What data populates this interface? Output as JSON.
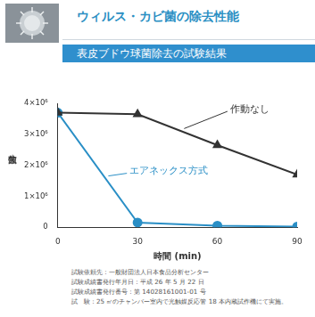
{
  "header": {
    "title": "ウィルス・カビ菌の除去性能",
    "subtitle": "表皮ブドウ球菌除去の試験結果"
  },
  "chart_data": {
    "type": "line",
    "x_label": "時間 (min)",
    "y_label": "生菌数",
    "x": [
      0,
      30,
      60,
      90
    ],
    "series": [
      {
        "name": "作動なし",
        "color": "#333333",
        "marker": "triangle",
        "line_style": "solid",
        "values": [
          3700000,
          3650000,
          2650000,
          1700000
        ]
      },
      {
        "name": "エアネックス方式",
        "color": "#2a8fc6",
        "marker": "circle",
        "line_style": "solid",
        "values": [
          3700000,
          150000,
          50000,
          20000
        ]
      }
    ],
    "xlim": [
      0,
      90
    ],
    "xticks": [
      0,
      30,
      60,
      90
    ],
    "ylim": [
      0,
      4000000
    ],
    "yticks": [
      0,
      {
        "value": 1000000,
        "label": "1×10⁶"
      },
      {
        "value": 2000000,
        "label": "2×10⁶"
      },
      {
        "value": 3000000,
        "label": "3×10⁶"
      },
      {
        "value": 4000000,
        "label": "4×10⁶"
      }
    ],
    "grid": false,
    "legend": false
  },
  "notes": [
    "試験依頼先：一般財団法人日本食品分析センター",
    "試験成績書発行年月日：平成 26 年 5 月 22 日",
    "試験成績書発行番号：第 14028161001-01 号",
    "試　験：25 ㎥のチャンバー室内で光触媒反応管 18 本内蔵試作機にて実施。"
  ]
}
